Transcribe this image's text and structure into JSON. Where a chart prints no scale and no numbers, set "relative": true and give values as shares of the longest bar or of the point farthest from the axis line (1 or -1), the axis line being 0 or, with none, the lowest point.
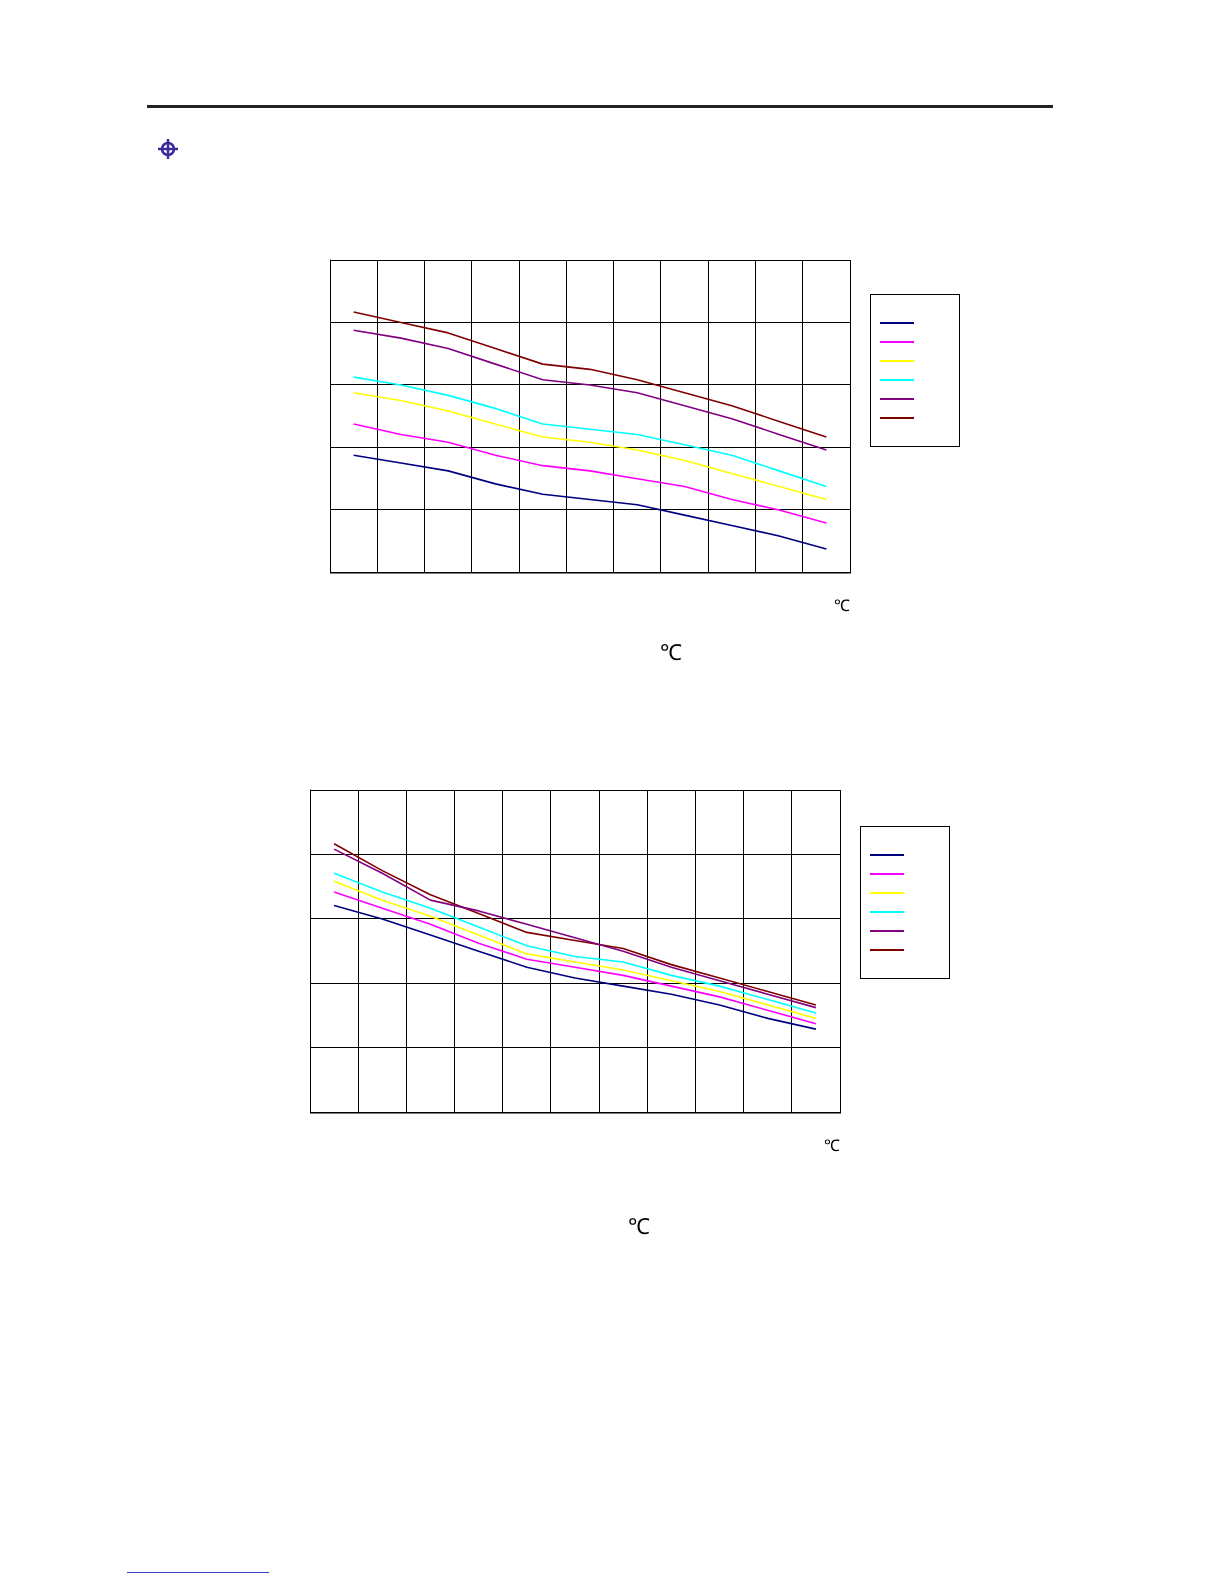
{
  "chart_data": [
    {
      "type": "line",
      "relative": true,
      "xlabel": "℃",
      "annotations": [
        "℃"
      ],
      "grid": true,
      "marker": "none",
      "line_style": "solid",
      "categories": [
        null,
        null,
        null,
        null,
        null,
        null,
        null,
        null,
        null,
        null,
        null
      ],
      "series": [
        {
          "color": "#000080",
          "values": [
            0.45,
            0.42,
            0.39,
            0.34,
            0.3,
            0.28,
            0.26,
            0.22,
            0.18,
            0.14,
            0.09
          ]
        },
        {
          "color": "#ff00ff",
          "values": [
            0.57,
            0.53,
            0.5,
            0.45,
            0.41,
            0.39,
            0.36,
            0.33,
            0.28,
            0.24,
            0.19
          ]
        },
        {
          "color": "#ffff00",
          "values": [
            0.69,
            0.66,
            0.62,
            0.57,
            0.52,
            0.5,
            0.47,
            0.43,
            0.38,
            0.33,
            0.28
          ]
        },
        {
          "color": "#00ffff",
          "values": [
            0.75,
            0.72,
            0.68,
            0.63,
            0.57,
            0.55,
            0.53,
            0.49,
            0.45,
            0.39,
            0.33
          ]
        },
        {
          "color": "#800080",
          "values": [
            0.93,
            0.9,
            0.86,
            0.8,
            0.74,
            0.72,
            0.69,
            0.64,
            0.59,
            0.53,
            0.47
          ]
        },
        {
          "color": "#800000",
          "values": [
            1,
            0.96,
            0.92,
            0.86,
            0.8,
            0.78,
            0.74,
            0.69,
            0.64,
            0.58,
            0.52
          ]
        }
      ]
    },
    {
      "type": "line",
      "relative": true,
      "xlabel": "℃",
      "annotations": [
        "℃"
      ],
      "grid": true,
      "marker": "none",
      "line_style": "solid",
      "categories": [
        null,
        null,
        null,
        null,
        null,
        null,
        null,
        null,
        null,
        null,
        null
      ],
      "series": [
        {
          "color": "#000080",
          "values": [
            0.77,
            0.72,
            0.66,
            0.6,
            0.54,
            0.5,
            0.47,
            0.44,
            0.4,
            0.35,
            0.31
          ]
        },
        {
          "color": "#ff00ff",
          "values": [
            0.82,
            0.76,
            0.7,
            0.63,
            0.57,
            0.54,
            0.51,
            0.47,
            0.43,
            0.38,
            0.33
          ]
        },
        {
          "color": "#ffff00",
          "values": [
            0.86,
            0.79,
            0.73,
            0.66,
            0.59,
            0.56,
            0.53,
            0.49,
            0.45,
            0.4,
            0.35
          ]
        },
        {
          "color": "#00ffff",
          "values": [
            0.89,
            0.82,
            0.76,
            0.69,
            0.62,
            0.58,
            0.56,
            0.51,
            0.47,
            0.42,
            0.37
          ]
        },
        {
          "color": "#800080",
          "values": [
            0.98,
            0.89,
            0.79,
            0.75,
            0.7,
            0.65,
            0.6,
            0.54,
            0.49,
            0.44,
            0.39
          ]
        },
        {
          "color": "#800000",
          "values": [
            1,
            0.9,
            0.81,
            0.74,
            0.67,
            0.64,
            0.61,
            0.55,
            0.5,
            0.45,
            0.4
          ]
        }
      ]
    }
  ]
}
